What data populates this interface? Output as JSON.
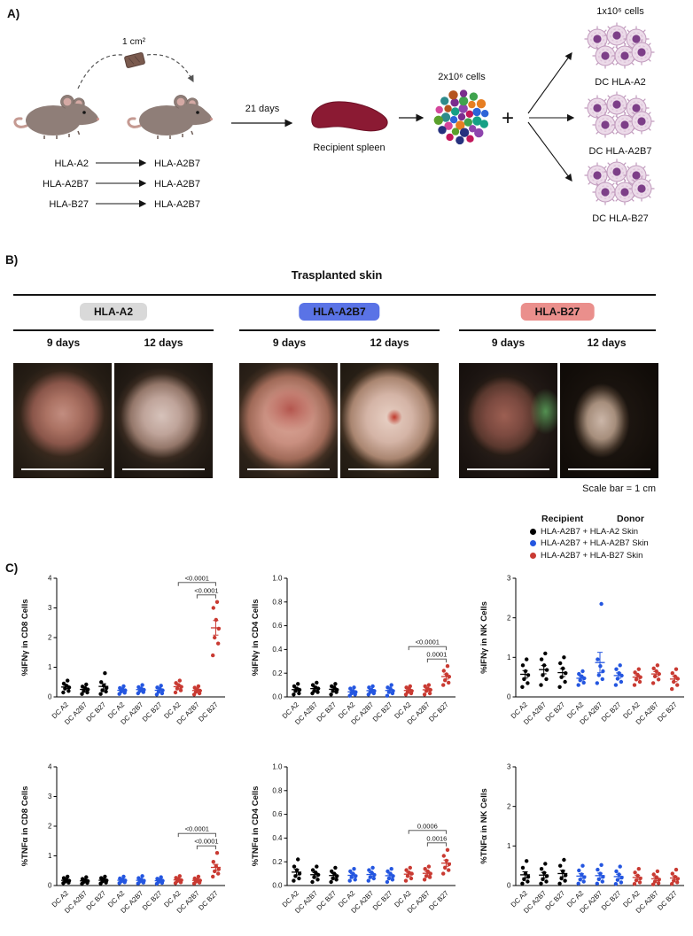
{
  "figure": {
    "background": "#ffffff"
  },
  "panels": {
    "a": {
      "label": "A)",
      "skin_size": "1 cm²",
      "duration": "21 days",
      "spleen_label": "Recipient spleen",
      "mixed_cells_label": "2x10⁶ cells",
      "plus": "+",
      "dc_cells_label": "1x10⁶ cells",
      "dc_groups": [
        "DC HLA-A2",
        "DC HLA-A2B7",
        "DC HLA-B27"
      ],
      "transplants": [
        {
          "from": "HLA-A2",
          "to": "HLA-A2B7"
        },
        {
          "from": "HLA-A2B7",
          "to": "HLA-A2B7"
        },
        {
          "from": "HLA-B27",
          "to": "HLA-A2B7"
        }
      ]
    },
    "b": {
      "label": "B)",
      "title": "Trasplanted skin",
      "scale_bar": "Scale bar = 1 cm",
      "groups": [
        {
          "name": "HLA-A2",
          "badge_color": "#d9d9d9",
          "days": [
            "9 days",
            "12 days"
          ]
        },
        {
          "name": "HLA-A2B7",
          "badge_color": "#5a73e6",
          "days": [
            "9 days",
            "12 days"
          ]
        },
        {
          "name": "HLA-B27",
          "badge_color": "#ea8f8c",
          "days": [
            "9 days",
            "12 days"
          ]
        }
      ]
    },
    "c": {
      "label": "C)",
      "legend": {
        "recipient_header": "Recipient",
        "donor_header": "Donor",
        "entries": [
          {
            "label": "HLA-A2B7 + HLA-A2 Skin",
            "color": "#000000"
          },
          {
            "label": "HLA-A2B7 + HLA-A2B7 Skin",
            "color": "#2456e0"
          },
          {
            "label": "HLA-A2B7 + HLA-B27 Skin",
            "color": "#c93a32"
          }
        ]
      }
    }
  },
  "chart_data": [
    {
      "type": "scatter",
      "ylabel": "%IFNγ in CD8 Cells",
      "ylim": [
        0,
        4
      ],
      "yticks": [
        "0",
        "1",
        "2",
        "3",
        "4"
      ],
      "categories": [
        "DC A2",
        "DC A2B7",
        "DC B27"
      ],
      "series": [
        {
          "name": "HLA-A2B7 + HLA-A2 Skin",
          "color": "#000000",
          "values": [
            [
              0.15,
              0.2,
              0.28,
              0.32,
              0.38,
              0.45,
              0.55
            ],
            [
              0.1,
              0.15,
              0.2,
              0.25,
              0.3,
              0.35,
              0.42
            ],
            [
              0.1,
              0.18,
              0.22,
              0.3,
              0.38,
              0.5,
              0.8
            ]
          ]
        },
        {
          "name": "HLA-A2B7 + HLA-A2B7 Skin",
          "color": "#2456e0",
          "values": [
            [
              0.1,
              0.14,
              0.18,
              0.22,
              0.26,
              0.3,
              0.36
            ],
            [
              0.12,
              0.16,
              0.2,
              0.24,
              0.28,
              0.33,
              0.4
            ],
            [
              0.08,
              0.12,
              0.17,
              0.22,
              0.27,
              0.32,
              0.38
            ]
          ]
        },
        {
          "name": "HLA-A2B7 + HLA-B27 Skin",
          "color": "#c93a32",
          "values": [
            [
              0.15,
              0.22,
              0.28,
              0.34,
              0.4,
              0.47,
              0.55
            ],
            [
              0.08,
              0.12,
              0.17,
              0.21,
              0.26,
              0.31,
              0.36
            ],
            [
              1.4,
              1.8,
              2.0,
              2.3,
              2.6,
              3.0,
              3.2
            ]
          ]
        }
      ],
      "annotations": [
        {
          "text": "<0.0001",
          "from": 6,
          "to": 8,
          "level": 1
        },
        {
          "text": "<0.0001",
          "from": 7,
          "to": 8,
          "level": 0
        }
      ]
    },
    {
      "type": "scatter",
      "ylabel": "%IFNγ in CD4 Cells",
      "ylim": [
        0,
        1.0
      ],
      "yticks": [
        "0.0",
        "0.2",
        "0.4",
        "0.6",
        "0.8",
        "1.0"
      ],
      "categories": [
        "DC A2",
        "DC A2B7",
        "DC B27"
      ],
      "series": [
        {
          "name": "HLA-A2B7 + HLA-A2 Skin",
          "color": "#000000",
          "values": [
            [
              0.02,
              0.03,
              0.05,
              0.06,
              0.07,
              0.09,
              0.11
            ],
            [
              0.03,
              0.04,
              0.05,
              0.07,
              0.08,
              0.1,
              0.12
            ],
            [
              0.02,
              0.04,
              0.05,
              0.06,
              0.08,
              0.09,
              0.11
            ]
          ]
        },
        {
          "name": "HLA-A2B7 + HLA-A2B7 Skin",
          "color": "#2456e0",
          "values": [
            [
              0.01,
              0.02,
              0.03,
              0.04,
              0.05,
              0.07,
              0.08
            ],
            [
              0.02,
              0.03,
              0.04,
              0.05,
              0.06,
              0.08,
              0.09
            ],
            [
              0.01,
              0.03,
              0.04,
              0.05,
              0.07,
              0.08,
              0.1
            ]
          ]
        },
        {
          "name": "HLA-A2B7 + HLA-B27 Skin",
          "color": "#c93a32",
          "values": [
            [
              0.02,
              0.03,
              0.04,
              0.05,
              0.07,
              0.08,
              0.09
            ],
            [
              0.02,
              0.03,
              0.05,
              0.06,
              0.07,
              0.09,
              0.1
            ],
            [
              0.1,
              0.12,
              0.14,
              0.17,
              0.19,
              0.22,
              0.26
            ]
          ]
        }
      ],
      "annotations": [
        {
          "text": "<0.0001",
          "from": 6,
          "to": 8,
          "level": 1
        },
        {
          "text": "0.0001",
          "from": 7,
          "to": 8,
          "level": 0
        }
      ]
    },
    {
      "type": "scatter",
      "ylabel": "%IFNγ in NK Cells",
      "ylim": [
        0,
        3
      ],
      "yticks": [
        "0",
        "1",
        "2",
        "3"
      ],
      "categories": [
        "DC A2",
        "DC A2B7",
        "DC B27"
      ],
      "series": [
        {
          "name": "HLA-A2B7 + HLA-A2 Skin",
          "color": "#000000",
          "values": [
            [
              0.25,
              0.35,
              0.45,
              0.55,
              0.65,
              0.8,
              0.95
            ],
            [
              0.3,
              0.45,
              0.55,
              0.68,
              0.8,
              0.95,
              1.1
            ],
            [
              0.25,
              0.38,
              0.5,
              0.6,
              0.72,
              0.85,
              1.0
            ]
          ]
        },
        {
          "name": "HLA-A2B7 + HLA-A2B7 Skin",
          "color": "#2456e0",
          "values": [
            [
              0.3,
              0.36,
              0.42,
              0.47,
              0.52,
              0.58,
              0.65
            ],
            [
              0.35,
              0.45,
              0.55,
              0.65,
              0.78,
              0.95,
              2.35
            ],
            [
              0.3,
              0.38,
              0.46,
              0.54,
              0.6,
              0.7,
              0.8
            ]
          ]
        },
        {
          "name": "HLA-A2B7 + HLA-B27 Skin",
          "color": "#c93a32",
          "values": [
            [
              0.3,
              0.38,
              0.44,
              0.5,
              0.56,
              0.62,
              0.7
            ],
            [
              0.35,
              0.44,
              0.52,
              0.58,
              0.65,
              0.72,
              0.8
            ],
            [
              0.2,
              0.3,
              0.38,
              0.46,
              0.52,
              0.6,
              0.7
            ]
          ]
        }
      ],
      "annotations": []
    },
    {
      "type": "scatter",
      "ylabel": "%TNFα in CD8 Cells",
      "ylim": [
        0,
        4
      ],
      "yticks": [
        "0",
        "1",
        "2",
        "3",
        "4"
      ],
      "categories": [
        "DC A2",
        "DC A2B7",
        "DC B27"
      ],
      "series": [
        {
          "name": "HLA-A2B7 + HLA-A2 Skin",
          "color": "#000000",
          "values": [
            [
              0.08,
              0.1,
              0.13,
              0.16,
              0.2,
              0.25,
              0.3
            ],
            [
              0.06,
              0.09,
              0.12,
              0.15,
              0.18,
              0.22,
              0.28
            ],
            [
              0.07,
              0.1,
              0.14,
              0.17,
              0.21,
              0.25,
              0.3
            ]
          ]
        },
        {
          "name": "HLA-A2B7 + HLA-A2B7 Skin",
          "color": "#2456e0",
          "values": [
            [
              0.08,
              0.11,
              0.14,
              0.17,
              0.2,
              0.24,
              0.3
            ],
            [
              0.07,
              0.1,
              0.13,
              0.16,
              0.2,
              0.25,
              0.32
            ],
            [
              0.06,
              0.09,
              0.12,
              0.16,
              0.19,
              0.23,
              0.28
            ]
          ]
        },
        {
          "name": "HLA-A2B7 + HLA-B27 Skin",
          "color": "#c93a32",
          "values": [
            [
              0.08,
              0.11,
              0.15,
              0.18,
              0.22,
              0.26,
              0.32
            ],
            [
              0.07,
              0.1,
              0.13,
              0.17,
              0.2,
              0.24,
              0.3
            ],
            [
              0.3,
              0.4,
              0.48,
              0.55,
              0.65,
              0.8,
              1.1
            ]
          ]
        }
      ],
      "annotations": [
        {
          "text": "<0.0001",
          "from": 6,
          "to": 8,
          "level": 1
        },
        {
          "text": "<0.0001",
          "from": 7,
          "to": 8,
          "level": 0
        }
      ]
    },
    {
      "type": "scatter",
      "ylabel": "%TNFα in CD4 Cells",
      "ylim": [
        0,
        1.0
      ],
      "yticks": [
        "0.0",
        "0.2",
        "0.4",
        "0.6",
        "0.8",
        "1.0"
      ],
      "categories": [
        "DC A2",
        "DC A2B7",
        "DC B27"
      ],
      "series": [
        {
          "name": "HLA-A2B7 + HLA-A2 Skin",
          "color": "#000000",
          "values": [
            [
              0.04,
              0.06,
              0.08,
              0.1,
              0.13,
              0.16,
              0.22
            ],
            [
              0.03,
              0.05,
              0.07,
              0.09,
              0.11,
              0.13,
              0.16
            ],
            [
              0.03,
              0.05,
              0.06,
              0.08,
              0.1,
              0.12,
              0.15
            ]
          ]
        },
        {
          "name": "HLA-A2B7 + HLA-A2B7 Skin",
          "color": "#2456e0",
          "values": [
            [
              0.04,
              0.05,
              0.07,
              0.08,
              0.1,
              0.12,
              0.14
            ],
            [
              0.04,
              0.06,
              0.07,
              0.09,
              0.11,
              0.13,
              0.15
            ],
            [
              0.03,
              0.05,
              0.06,
              0.08,
              0.1,
              0.12,
              0.14
            ]
          ]
        },
        {
          "name": "HLA-A2B7 + HLA-B27 Skin",
          "color": "#c93a32",
          "values": [
            [
              0.04,
              0.06,
              0.08,
              0.1,
              0.11,
              0.13,
              0.15
            ],
            [
              0.05,
              0.07,
              0.08,
              0.1,
              0.12,
              0.14,
              0.16
            ],
            [
              0.1,
              0.13,
              0.15,
              0.18,
              0.21,
              0.25,
              0.3
            ]
          ]
        }
      ],
      "annotations": [
        {
          "text": "0.0006",
          "from": 6,
          "to": 8,
          "level": 1
        },
        {
          "text": "0.0016",
          "from": 7,
          "to": 8,
          "level": 0
        }
      ]
    },
    {
      "type": "scatter",
      "ylabel": "%TNFα in NK Cells",
      "ylim": [
        0,
        3
      ],
      "yticks": [
        "0",
        "1",
        "2",
        "3"
      ],
      "categories": [
        "DC A2",
        "DC A2B7",
        "DC B27"
      ],
      "series": [
        {
          "name": "HLA-A2B7 + HLA-A2 Skin",
          "color": "#000000",
          "values": [
            [
              0.05,
              0.1,
              0.16,
              0.22,
              0.3,
              0.45,
              0.62
            ],
            [
              0.05,
              0.1,
              0.16,
              0.24,
              0.32,
              0.42,
              0.55
            ],
            [
              0.05,
              0.12,
              0.18,
              0.26,
              0.36,
              0.5,
              0.65
            ]
          ]
        },
        {
          "name": "HLA-A2B7 + HLA-A2B7 Skin",
          "color": "#2456e0",
          "values": [
            [
              0.05,
              0.1,
              0.15,
              0.21,
              0.28,
              0.38,
              0.5
            ],
            [
              0.05,
              0.1,
              0.16,
              0.22,
              0.3,
              0.4,
              0.52
            ],
            [
              0.04,
              0.08,
              0.14,
              0.2,
              0.28,
              0.36,
              0.48
            ]
          ]
        },
        {
          "name": "HLA-A2B7 + HLA-B27 Skin",
          "color": "#c93a32",
          "values": [
            [
              0.04,
              0.08,
              0.13,
              0.18,
              0.25,
              0.33,
              0.42
            ],
            [
              0.03,
              0.06,
              0.1,
              0.15,
              0.21,
              0.28,
              0.36
            ],
            [
              0.04,
              0.08,
              0.12,
              0.17,
              0.22,
              0.3,
              0.4
            ]
          ]
        }
      ],
      "annotations": []
    }
  ]
}
